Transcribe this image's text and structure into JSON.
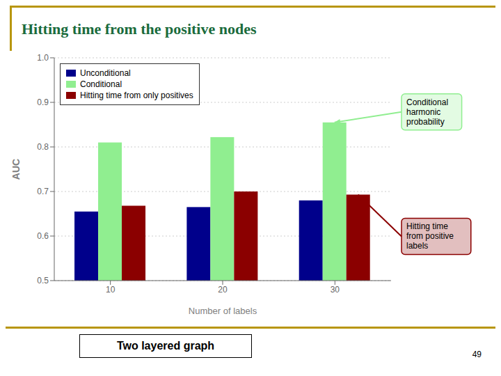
{
  "chart_data": {
    "type": "bar",
    "title": "Hitting time from the positive nodes",
    "xlabel": "Number of labels",
    "ylabel": "AUC",
    "categories": [
      10,
      20,
      30
    ],
    "series": [
      {
        "name": "Unconditional",
        "color": "#00008B",
        "values": [
          0.655,
          0.665,
          0.68
        ]
      },
      {
        "name": "Conditional",
        "color": "#90EE90",
        "values": [
          0.81,
          0.822,
          0.855
        ]
      },
      {
        "name": "Hitting time from only positives",
        "color": "#8B0000",
        "values": [
          0.668,
          0.7,
          0.693
        ]
      }
    ],
    "ylim": [
      0.5,
      1.0
    ],
    "yticks": [
      0.5,
      0.6,
      0.7,
      0.8,
      0.9,
      {
        "value": 1.0,
        "label": "1.0"
      }
    ],
    "grid": true,
    "legend": "upper left",
    "annotations": [
      {
        "text": "Conditional\nharmonic\nprobability",
        "series": "Conditional",
        "category": 30
      },
      {
        "text": "Hitting time\nfrom positive\nlabels",
        "series": "Hitting time from only positives",
        "category": 30
      },
      {
        "text": "Two layered graph"
      },
      {
        "text": "49"
      }
    ]
  }
}
